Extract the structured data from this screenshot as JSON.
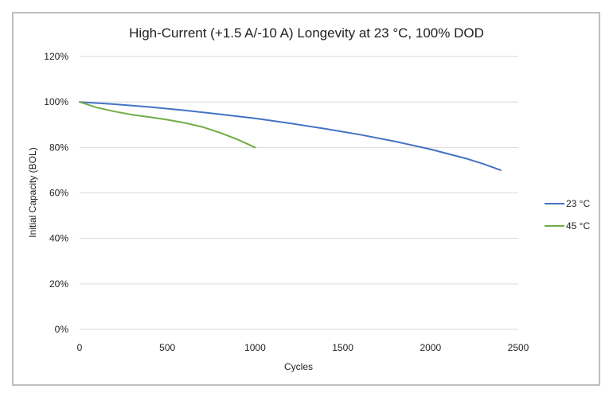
{
  "chart_data": {
    "type": "line",
    "title": "High-Current (+1.5 A/-10 A) Longevity at 23 °C, 100% DOD",
    "xlabel": "Cycles",
    "ylabel": "Initial Capacity (BOL)",
    "xlim": [
      0,
      2500
    ],
    "ylim": [
      0,
      120
    ],
    "x_ticks": [
      "0",
      "500",
      "1000",
      "1500",
      "2000",
      "2500"
    ],
    "y_ticks": [
      "0%",
      "20%",
      "40%",
      "60%",
      "80%",
      "100%",
      "120%"
    ],
    "grid": true,
    "legend_position": "right",
    "series": [
      {
        "name": "23 °C",
        "color": "#4472c4",
        "x": [
          0,
          200,
          400,
          600,
          800,
          1000,
          1200,
          1400,
          1600,
          1800,
          2000,
          2200,
          2300,
          2400
        ],
        "y": [
          100,
          99,
          97.8,
          96.3,
          94.6,
          92.8,
          90.6,
          88.2,
          85.6,
          82.6,
          79.2,
          75.2,
          72.8,
          70
        ]
      },
      {
        "name": "45 °C",
        "color": "#70ad47",
        "x": [
          0,
          100,
          200,
          300,
          400,
          500,
          600,
          700,
          800,
          900,
          1000
        ],
        "y": [
          100,
          97.5,
          95.8,
          94.4,
          93.3,
          92.2,
          90.8,
          89,
          86.5,
          83.5,
          80
        ]
      }
    ]
  }
}
